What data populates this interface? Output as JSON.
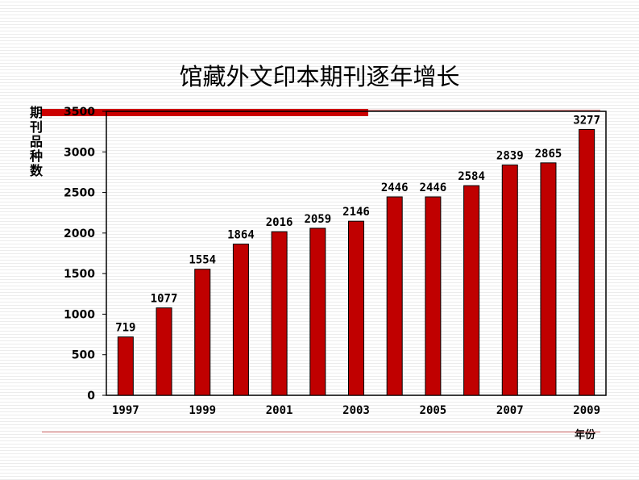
{
  "chart_data": {
    "type": "bar",
    "title": "馆藏外文印本期刊逐年增长",
    "ylabel": "期刊品种数",
    "xlabel": "年份",
    "categories": [
      "1997",
      "1998",
      "1999",
      "2000",
      "2001",
      "2002",
      "2003",
      "2004",
      "2005",
      "2006",
      "2007",
      "2008",
      "2009"
    ],
    "x_tick_labels": [
      "1997",
      "",
      "1999",
      "",
      "2001",
      "",
      "2003",
      "",
      "2005",
      "",
      "2007",
      "",
      "2009"
    ],
    "values": [
      719,
      1077,
      1554,
      1864,
      2016,
      2059,
      2146,
      2446,
      2446,
      2584,
      2839,
      2865,
      3277
    ],
    "ylim": [
      0,
      3500
    ],
    "yticks": [
      0,
      500,
      1000,
      1500,
      2000,
      2500,
      3000,
      3500
    ],
    "grid": false,
    "legend": "none",
    "colors": {
      "bar": "#c00000",
      "accent": "#cc0000",
      "line": "#d46a6a"
    }
  }
}
